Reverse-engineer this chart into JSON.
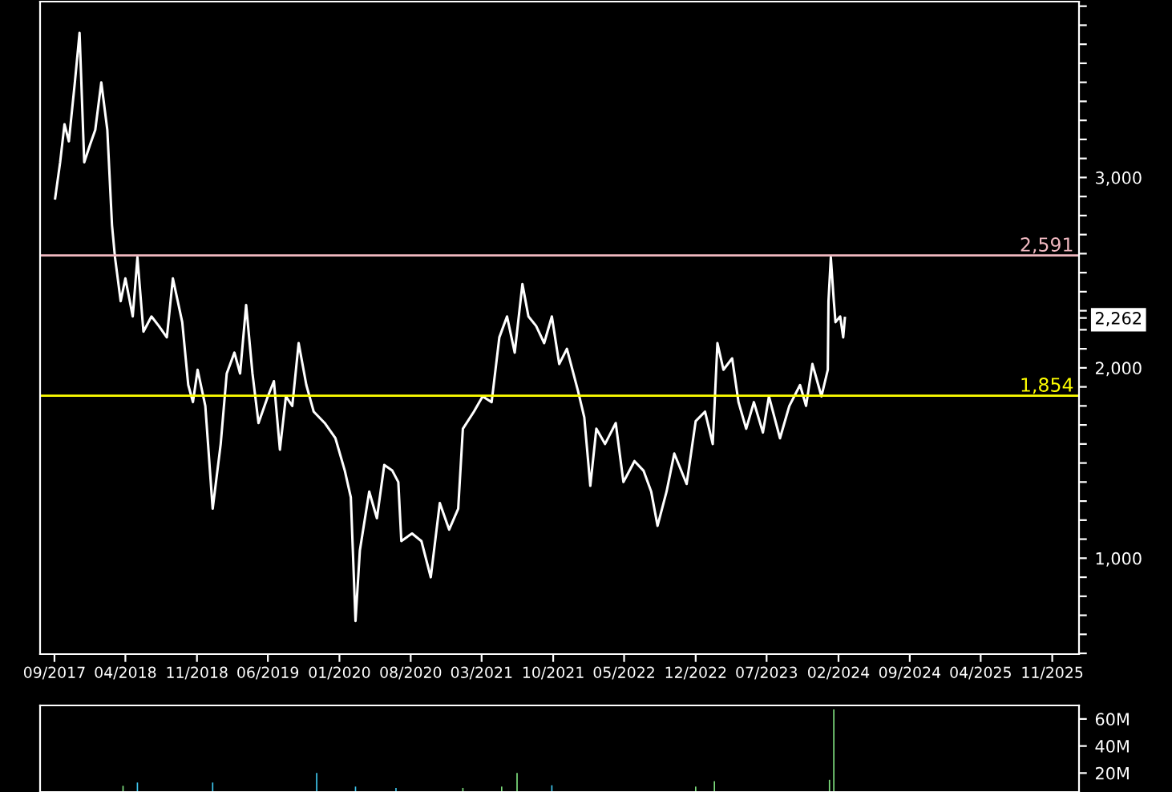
{
  "chart_data": [
    {
      "type": "line",
      "xlim": [
        "2017-07-20",
        "2026-01-20"
      ],
      "xticks": [
        {
          "value": "2017-09-01",
          "label": "09/2017"
        },
        {
          "value": "2018-04-01",
          "label": "04/2018"
        },
        {
          "value": "2018-11-01",
          "label": "11/2018"
        },
        {
          "value": "2019-06-01",
          "label": "06/2019"
        },
        {
          "value": "2020-01-01",
          "label": "01/2020"
        },
        {
          "value": "2020-08-01",
          "label": "08/2020"
        },
        {
          "value": "2021-03-01",
          "label": "03/2021"
        },
        {
          "value": "2021-10-01",
          "label": "10/2021"
        },
        {
          "value": "2022-05-01",
          "label": "05/2022"
        },
        {
          "value": "2022-12-01",
          "label": "12/2022"
        },
        {
          "value": "2023-07-01",
          "label": "07/2023"
        },
        {
          "value": "2024-02-01",
          "label": "02/2024"
        },
        {
          "value": "2024-09-01",
          "label": "09/2024"
        },
        {
          "value": "2025-04-01",
          "label": "04/2025"
        },
        {
          "value": "2025-11-01",
          "label": "11/2025"
        }
      ],
      "ylim": [
        496,
        3924
      ],
      "yticks": [
        {
          "value": 500,
          "label": null
        },
        {
          "value": 600,
          "label": null
        },
        {
          "value": 700,
          "label": null
        },
        {
          "value": 800,
          "label": null
        },
        {
          "value": 900,
          "label": null
        },
        {
          "value": 1000,
          "label": "1,000"
        },
        {
          "value": 1100,
          "label": null
        },
        {
          "value": 1200,
          "label": null
        },
        {
          "value": 1300,
          "label": null
        },
        {
          "value": 1400,
          "label": null
        },
        {
          "value": 1500,
          "label": null
        },
        {
          "value": 1600,
          "label": null
        },
        {
          "value": 1700,
          "label": null
        },
        {
          "value": 1800,
          "label": null
        },
        {
          "value": 1900,
          "label": null
        },
        {
          "value": 2000,
          "label": "2,000"
        },
        {
          "value": 2100,
          "label": null
        },
        {
          "value": 2200,
          "label": null
        },
        {
          "value": 2262,
          "label": "2,262"
        },
        {
          "value": 2300,
          "label": null
        },
        {
          "value": 2400,
          "label": null
        },
        {
          "value": 2500,
          "label": null
        },
        {
          "value": 2600,
          "label": null
        },
        {
          "value": 2700,
          "label": null
        },
        {
          "value": 2800,
          "label": null
        },
        {
          "value": 2900,
          "label": null
        },
        {
          "value": 3000,
          "label": "3,000"
        },
        {
          "value": 3100,
          "label": null
        },
        {
          "value": 3200,
          "label": null
        },
        {
          "value": 3300,
          "label": null
        },
        {
          "value": 3400,
          "label": null
        },
        {
          "value": 3500,
          "label": null
        },
        {
          "value": 3600,
          "label": null
        },
        {
          "value": 3700,
          "label": null
        },
        {
          "value": 3800,
          "label": null
        },
        {
          "value": 3900,
          "label": null
        }
      ],
      "grid": false,
      "ref_lines": [
        {
          "axis": "y",
          "value": 2591,
          "label": "2,591",
          "color": "#f0b8c0"
        },
        {
          "axis": "y",
          "value": 1854,
          "label": "1,854",
          "color": "#ffff00"
        }
      ],
      "series": [
        {
          "color": "#ffffff",
          "x": [
            "2017-09-03",
            "2017-09-18",
            "2017-10-01",
            "2017-10-14",
            "2017-11-01",
            "2017-11-15",
            "2017-11-29",
            "2017-12-16",
            "2018-01-01",
            "2018-01-19",
            "2018-02-06",
            "2018-02-20",
            "2018-03-01",
            "2018-03-18",
            "2018-04-01",
            "2018-04-23",
            "2018-05-07",
            "2018-05-25",
            "2018-06-18",
            "2018-07-10",
            "2018-08-03",
            "2018-08-21",
            "2018-09-18",
            "2018-10-06",
            "2018-10-20",
            "2018-11-03",
            "2018-11-26",
            "2018-12-18",
            "2019-01-11",
            "2019-01-29",
            "2019-02-21",
            "2019-03-10",
            "2019-03-28",
            "2019-04-16",
            "2019-05-04",
            "2019-06-01",
            "2019-06-19",
            "2019-07-07",
            "2019-07-25",
            "2019-08-13",
            "2019-09-01",
            "2019-09-24",
            "2019-10-16",
            "2019-11-18",
            "2019-12-20",
            "2020-01-17",
            "2020-02-04",
            "2020-02-18",
            "2020-03-02",
            "2020-03-30",
            "2020-04-22",
            "2020-05-14",
            "2020-06-07",
            "2020-06-25",
            "2020-07-04",
            "2020-08-05",
            "2020-09-02",
            "2020-09-30",
            "2020-10-27",
            "2020-11-24",
            "2020-12-21",
            "2021-01-04",
            "2021-02-06",
            "2021-03-04",
            "2021-03-31",
            "2021-04-23",
            "2021-05-16",
            "2021-06-08",
            "2021-07-01",
            "2021-07-19",
            "2021-08-11",
            "2021-09-04",
            "2021-09-27",
            "2021-10-19",
            "2021-11-11",
            "2021-12-14",
            "2022-01-02",
            "2022-01-20",
            "2022-02-07",
            "2022-03-05",
            "2022-04-06",
            "2022-04-29",
            "2022-06-01",
            "2022-06-28",
            "2022-07-21",
            "2022-08-09",
            "2022-09-05",
            "2022-09-28",
            "2022-11-04",
            "2022-12-01",
            "2022-12-29",
            "2023-01-21",
            "2023-02-04",
            "2023-02-22",
            "2023-03-20",
            "2023-04-08",
            "2023-05-01",
            "2023-05-24",
            "2023-06-20",
            "2023-07-08",
            "2023-08-10",
            "2023-09-07",
            "2023-10-09",
            "2023-10-27",
            "2023-11-15",
            "2023-12-12",
            "2023-12-31",
            "2024-01-02",
            "2024-01-09",
            "2024-01-18",
            "2024-01-23",
            "2024-02-06",
            "2024-02-15",
            "2024-02-20"
          ],
          "values": [
            2890,
            3080,
            3280,
            3190,
            3500,
            3760,
            3080,
            3170,
            3250,
            3500,
            3250,
            2750,
            2580,
            2350,
            2470,
            2270,
            2580,
            2190,
            2270,
            2220,
            2160,
            2470,
            2240,
            1910,
            1820,
            1990,
            1800,
            1260,
            1600,
            1970,
            2080,
            1970,
            2330,
            1970,
            1710,
            1850,
            1930,
            1570,
            1850,
            1800,
            2130,
            1910,
            1770,
            1710,
            1630,
            1460,
            1320,
            670,
            1040,
            1350,
            1210,
            1490,
            1460,
            1400,
            1090,
            1130,
            1090,
            900,
            1290,
            1150,
            1260,
            1680,
            1770,
            1850,
            1820,
            2160,
            2270,
            2080,
            2440,
            2270,
            2220,
            2130,
            2270,
            2020,
            2100,
            1880,
            1740,
            1380,
            1680,
            1600,
            1710,
            1400,
            1510,
            1460,
            1350,
            1170,
            1350,
            1550,
            1390,
            1720,
            1770,
            1600,
            2130,
            1990,
            2050,
            1820,
            1680,
            1820,
            1660,
            1850,
            1630,
            1800,
            1910,
            1800,
            2020,
            1850,
            1990,
            2350,
            2580,
            2350,
            2240,
            2270,
            2160,
            2262
          ]
        }
      ]
    },
    {
      "type": "bar",
      "xlim": [
        "2017-07-20",
        "2026-01-20"
      ],
      "ylim": [
        6,
        70
      ],
      "yticks": [
        {
          "value": 20,
          "label": "20M"
        },
        {
          "value": 40,
          "label": "40M"
        },
        {
          "value": 60,
          "label": "60M"
        }
      ],
      "tick_labels": "y",
      "x": [
        "2018-03-25",
        "2018-05-07",
        "2018-12-18",
        "2019-10-25",
        "2020-02-18",
        "2020-06-18",
        "2021-01-04",
        "2021-04-30",
        "2021-06-15",
        "2021-09-27",
        "2022-12-01",
        "2023-01-26",
        "2024-01-05",
        "2024-01-18"
      ],
      "values": [
        10.6,
        13,
        13,
        20,
        10,
        9,
        9,
        10,
        20,
        11,
        10,
        14,
        15,
        67
      ],
      "colors": [
        "#7fe07f",
        "#3fc8f0",
        "#3fc8f0",
        "#3fc8f0",
        "#3fc8f0",
        "#3fc8f0",
        "#7fe07f",
        "#7fe07f",
        "#7fe07f",
        "#3fc8f0",
        "#7fe07f",
        "#7fe07f",
        "#7fe07f",
        "#7fe07f"
      ]
    }
  ]
}
